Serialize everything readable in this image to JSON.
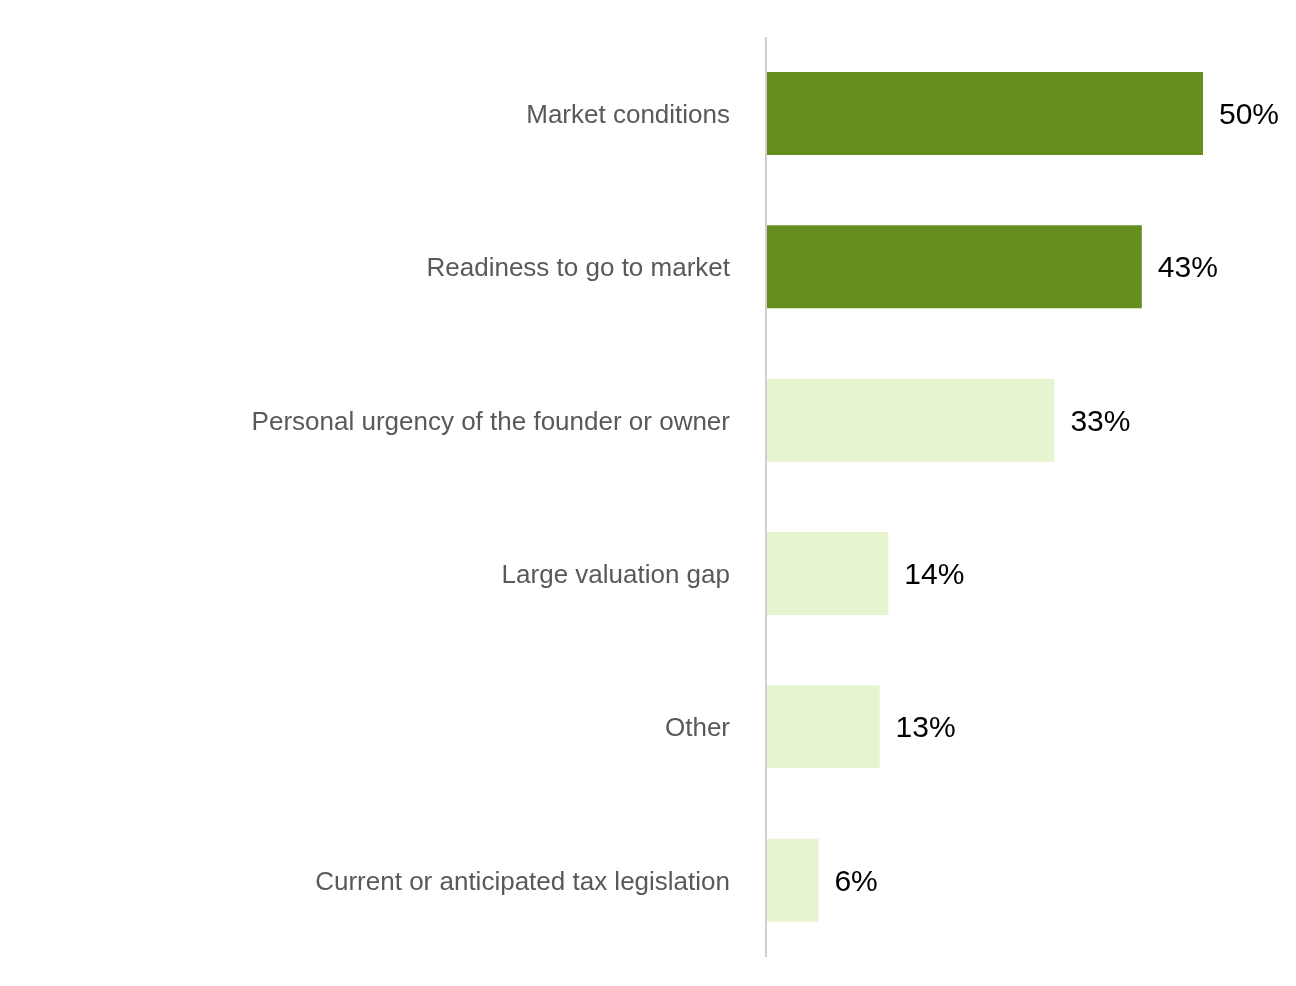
{
  "chart_data": {
    "type": "bar",
    "orientation": "horizontal",
    "categories": [
      "Market conditions",
      "Readiness to go to market",
      "Personal urgency of the founder or owner",
      "Large valuation gap",
      "Other",
      "Current or anticipated tax legislation"
    ],
    "values": [
      50,
      43,
      33,
      14,
      13,
      6
    ],
    "value_labels": [
      "50%",
      "43%",
      "33%",
      "14%",
      "13%",
      "6%"
    ],
    "colors": [
      "#668e1f",
      "#668e1f",
      "#e6f5cf",
      "#e6f5cf",
      "#e6f5cf",
      "#e6f5cf"
    ],
    "grid": false,
    "legend": false
  }
}
